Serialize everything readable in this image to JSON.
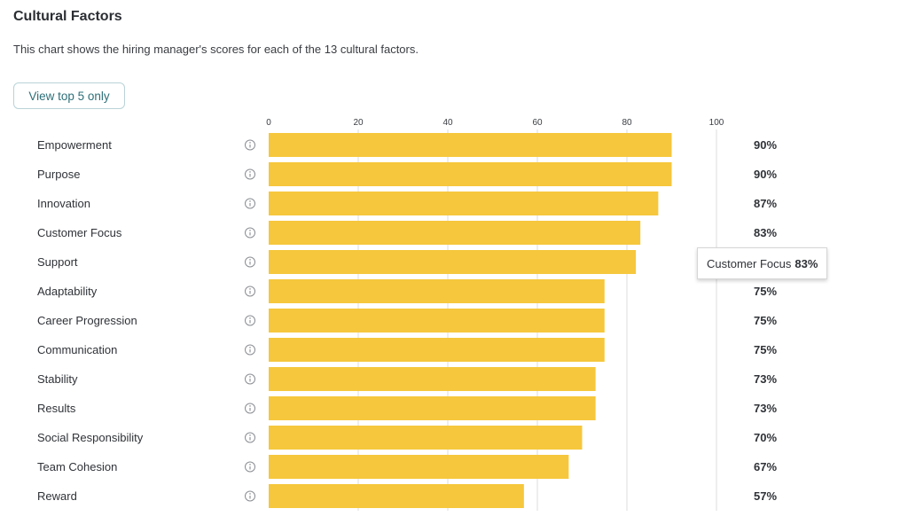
{
  "header": {
    "title": "Cultural Factors",
    "description": "This chart shows the hiring manager's scores for each of the 13 cultural factors."
  },
  "toolbar": {
    "view_top_label": "View top 5 only"
  },
  "tooltip": {
    "label": "Customer Focus",
    "value": "83%"
  },
  "colors": {
    "bar": "#F6C73C",
    "grid": "#dcdcdc"
  },
  "chart_data": {
    "type": "bar",
    "orientation": "horizontal",
    "categories": [
      "Empowerment",
      "Purpose",
      "Innovation",
      "Customer Focus",
      "Support",
      "Adaptability",
      "Career Progression",
      "Communication",
      "Stability",
      "Results",
      "Social Responsibility",
      "Team Cohesion",
      "Reward"
    ],
    "values": [
      90,
      90,
      87,
      83,
      82,
      75,
      75,
      75,
      73,
      73,
      70,
      67,
      57
    ],
    "value_labels": [
      "90%",
      "90%",
      "87%",
      "83%",
      "",
      "75%",
      "75%",
      "75%",
      "73%",
      "73%",
      "70%",
      "67%",
      "57%"
    ],
    "xlim": [
      0,
      100
    ],
    "xticks": [
      0,
      20,
      40,
      60,
      80,
      100
    ],
    "grid": true,
    "info_icon": "info-circle-icon"
  }
}
